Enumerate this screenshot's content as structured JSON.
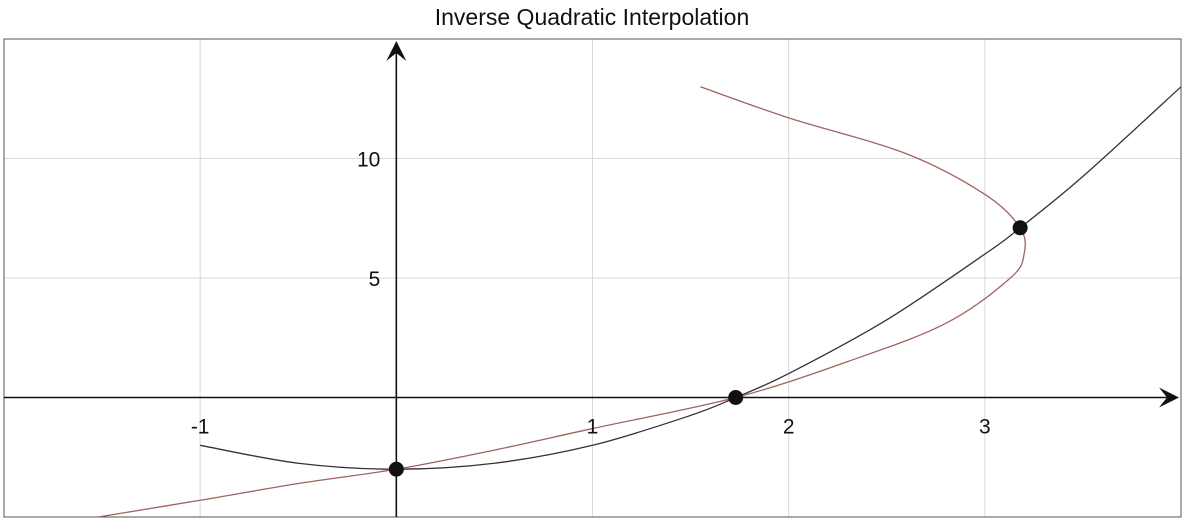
{
  "chart_data": {
    "type": "line",
    "title": "Inverse Quadratic Interpolation",
    "xlabel": "",
    "ylabel": "",
    "xlim": [
      -2,
      4
    ],
    "ylim": [
      -5,
      15
    ],
    "x_ticks": [
      -1,
      1,
      2,
      3
    ],
    "y_ticks": [
      5,
      10
    ],
    "grid": true,
    "series": [
      {
        "color": "#333333",
        "points": [
          [
            -1.0,
            -2.0
          ],
          [
            -0.5,
            -2.75
          ],
          [
            0.0,
            -3.0
          ],
          [
            0.5,
            -2.75
          ],
          [
            1.0,
            -2.0
          ],
          [
            1.5,
            -0.75
          ],
          [
            1.73,
            0.0
          ],
          [
            2.0,
            1.0
          ],
          [
            2.5,
            3.25
          ],
          [
            3.0,
            6.0
          ],
          [
            3.18,
            7.1
          ],
          [
            3.5,
            9.25
          ],
          [
            4.0,
            13.0
          ]
        ]
      },
      {
        "color": "#a0645f",
        "points": [
          [
            -1.52,
            -5.0
          ],
          [
            -1.0,
            -4.3
          ],
          [
            -0.5,
            -3.6
          ],
          [
            0.0,
            -3.0
          ],
          [
            0.5,
            -2.2
          ],
          [
            1.0,
            -1.3
          ],
          [
            1.73,
            0.0
          ],
          [
            2.3,
            1.5
          ],
          [
            2.8,
            3.1
          ],
          [
            3.13,
            5.0
          ],
          [
            3.2,
            6.0
          ],
          [
            3.18,
            7.1
          ],
          [
            3.0,
            8.5
          ],
          [
            2.6,
            10.2
          ],
          [
            2.0,
            11.7
          ],
          [
            1.55,
            13.0
          ]
        ]
      }
    ],
    "markers": [
      [
        0.0,
        -3.0
      ],
      [
        1.73,
        0.0
      ],
      [
        3.18,
        7.1
      ]
    ],
    "marker_color": "#111111",
    "axis_color": "#111111",
    "grid_color": "#d9d9d9"
  }
}
